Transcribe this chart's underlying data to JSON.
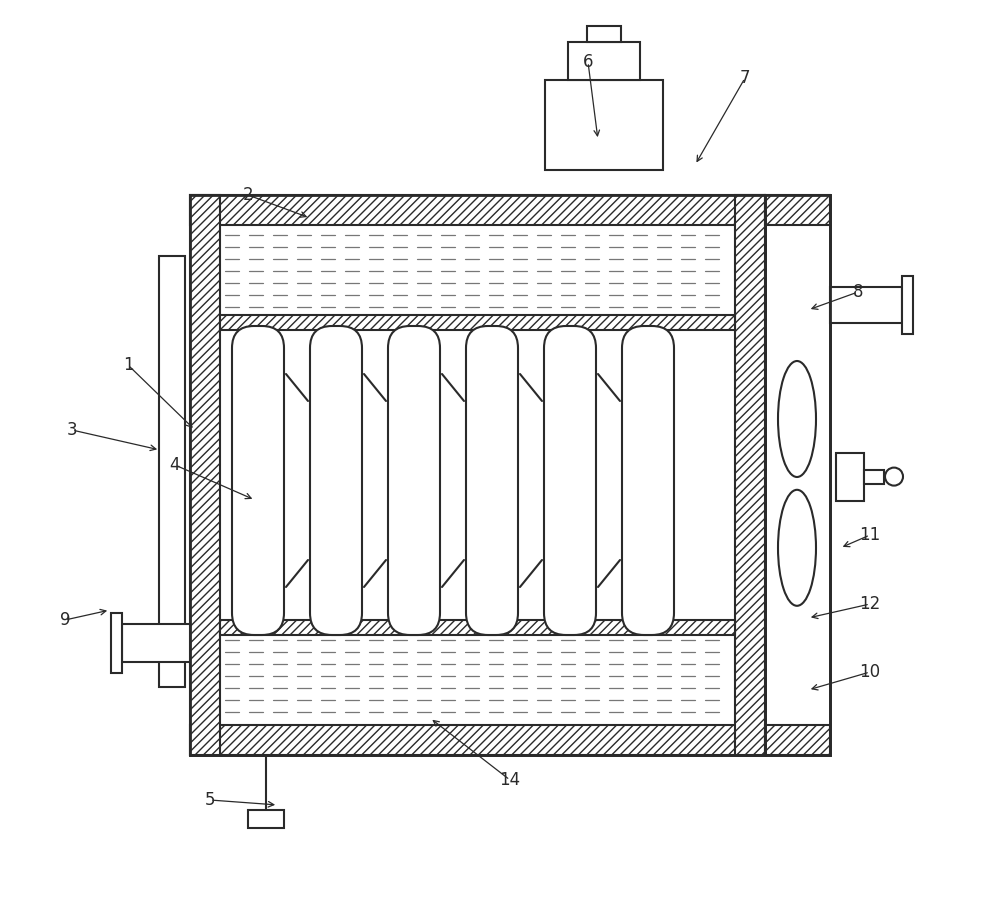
{
  "bg": "#ffffff",
  "lc": "#2a2a2a",
  "lw": 1.5,
  "figw": 10.0,
  "figh": 9.1,
  "dpi": 100,
  "annotations": [
    [
      "1",
      128,
      365,
      195,
      430
    ],
    [
      "2",
      248,
      195,
      310,
      218
    ],
    [
      "3",
      72,
      430,
      160,
      450
    ],
    [
      "4",
      175,
      465,
      255,
      500
    ],
    [
      "5",
      210,
      800,
      278,
      805
    ],
    [
      "6",
      588,
      62,
      598,
      140
    ],
    [
      "7",
      745,
      78,
      695,
      165
    ],
    [
      "8",
      858,
      292,
      808,
      310
    ],
    [
      "9",
      65,
      620,
      110,
      610
    ],
    [
      "10",
      870,
      672,
      808,
      690
    ],
    [
      "11",
      870,
      535,
      840,
      548
    ],
    [
      "12",
      870,
      604,
      808,
      618
    ],
    [
      "14",
      510,
      780,
      430,
      718
    ]
  ]
}
